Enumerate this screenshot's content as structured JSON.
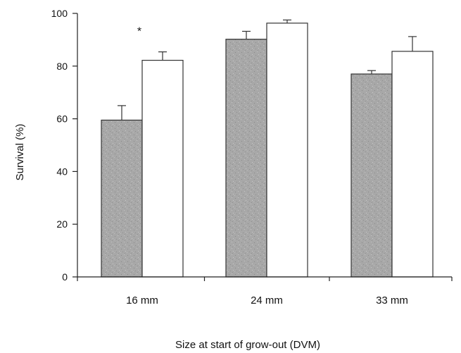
{
  "chart_data": {
    "type": "bar",
    "title": "",
    "xlabel": "Size at start of grow-out (DVM)",
    "ylabel": "Survival (%)",
    "ylim": [
      0,
      100
    ],
    "yticks": [
      "0",
      "20",
      "40",
      "60",
      "80",
      "100"
    ],
    "categories": [
      "16 mm",
      "24 mm",
      "33 mm"
    ],
    "series": [
      {
        "fill": "#a9a9a9",
        "values": [
          59.5,
          90.2,
          77.0
        ],
        "errors": [
          5.5,
          3.0,
          1.3
        ]
      },
      {
        "fill": "#ffffff",
        "values": [
          82.2,
          96.3,
          85.6
        ],
        "errors": [
          3.2,
          1.2,
          5.6
        ]
      }
    ],
    "annotations": [
      {
        "text": "*",
        "category": "16 mm",
        "y": 95
      }
    ],
    "grid": false,
    "legend": "none"
  }
}
